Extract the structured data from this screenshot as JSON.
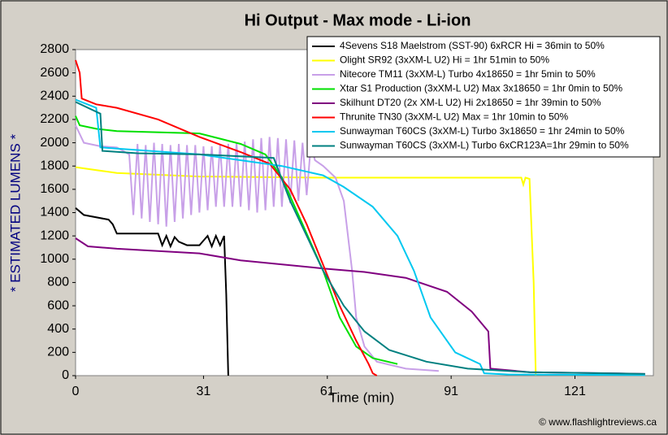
{
  "chart_data": {
    "type": "line",
    "title": "Hi Output - Max mode - Li-ion",
    "y_label": "* ESTIMATED LUMENS *",
    "x_label": "Time (min)",
    "annotation": "© www.flashlightreviews.ca",
    "xlim": [
      0,
      140
    ],
    "ylim": [
      0,
      2800
    ],
    "xticks": [
      0,
      31,
      61,
      91,
      121
    ],
    "yticks": [
      0,
      200,
      400,
      600,
      800,
      1000,
      1200,
      1400,
      1600,
      1800,
      2000,
      2200,
      2400,
      2600,
      2800
    ],
    "series": [
      {
        "name": "4Sevens S18 Maelstrom (SST-90) 6xRCR Hi = 36min to 50%",
        "color": "#000000",
        "x": [
          0,
          2,
          8,
          9,
          10,
          20,
          21,
          22,
          23,
          24,
          25,
          27,
          30,
          32,
          33,
          34,
          35,
          36,
          36.5,
          37
        ],
        "values": [
          1440,
          1380,
          1340,
          1300,
          1220,
          1220,
          1120,
          1200,
          1110,
          1190,
          1150,
          1120,
          1120,
          1200,
          1110,
          1200,
          1120,
          1200,
          700,
          0
        ]
      },
      {
        "name": "Olight SR92 (3xXM-L U2) Hi = 1hr 51min to 50%",
        "color": "#ffff00",
        "x": [
          0,
          10,
          30,
          60,
          100,
          108,
          108.5,
          109,
          110,
          111,
          111.5
        ],
        "values": [
          1790,
          1740,
          1710,
          1700,
          1700,
          1700,
          1640,
          1700,
          1690,
          800,
          0
        ]
      },
      {
        "name": "Nitecore TM11 (3xXM-L) Turbo 4x18650 = 1hr 5min to 50%",
        "color": "#c8a0e8",
        "x": [
          0,
          2,
          6,
          10,
          13,
          14,
          15,
          16,
          17,
          18,
          19,
          20,
          21,
          22,
          23,
          24,
          25,
          26,
          27,
          28,
          29,
          30,
          31,
          32,
          33,
          34,
          35,
          36,
          37,
          38,
          39,
          40,
          41,
          42,
          43,
          44,
          45,
          46,
          47,
          48,
          49,
          50,
          51,
          52,
          53,
          54,
          55,
          56,
          57,
          58,
          60,
          63,
          65,
          67,
          68,
          70,
          73,
          80,
          88
        ],
        "values": [
          2150,
          2000,
          1970,
          1960,
          1900,
          1380,
          1990,
          1350,
          1980,
          1320,
          2000,
          1300,
          1990,
          1280,
          1980,
          1320,
          1990,
          1350,
          1980,
          1380,
          1980,
          1400,
          1970,
          1420,
          1970,
          1450,
          1980,
          1450,
          1990,
          1450,
          2000,
          1450,
          2010,
          1420,
          2030,
          1400,
          2040,
          1420,
          2050,
          1450,
          2040,
          1450,
          2030,
          1480,
          2020,
          1500,
          2000,
          1550,
          1980,
          1850,
          1800,
          1700,
          1500,
          900,
          500,
          250,
          120,
          60,
          40
        ]
      },
      {
        "name": "Xtar S1 Production (3xXM-L U2) Max 3x18650 = 1hr 0min to 50%",
        "color": "#00e000",
        "x": [
          0,
          1,
          5,
          10,
          30,
          40,
          46,
          50,
          55,
          60,
          64,
          68,
          72,
          78
        ],
        "values": [
          2230,
          2150,
          2120,
          2100,
          2080,
          1990,
          1900,
          1700,
          1300,
          900,
          500,
          250,
          150,
          100
        ]
      },
      {
        "name": "Skilhunt DT20 (2x XM-L U2) Hi 2x18650 = 1hr 39min to 50%",
        "color": "#800080",
        "x": [
          0,
          3,
          10,
          30,
          40,
          60,
          70,
          80,
          90,
          96,
          100,
          100.5,
          110,
          130,
          138
        ],
        "values": [
          1180,
          1110,
          1090,
          1050,
          990,
          920,
          890,
          840,
          720,
          550,
          380,
          60,
          30,
          20,
          15
        ]
      },
      {
        "name": "Thrunite TN30 (3xXM-L U2) Max = 1hr 10min to 50%",
        "color": "#ff0000",
        "x": [
          0,
          1,
          1.5,
          5,
          10,
          20,
          30,
          40,
          47,
          52,
          56,
          60,
          64,
          68,
          71,
          72,
          73
        ],
        "values": [
          2710,
          2600,
          2380,
          2330,
          2300,
          2200,
          2050,
          1920,
          1820,
          1600,
          1300,
          950,
          600,
          300,
          100,
          20,
          0
        ]
      },
      {
        "name": "Sunwayman T60CS (3xXM-L) Turbo 3x18650 = 1hr 24min to 50%",
        "color": "#00c8f0",
        "x": [
          0,
          5,
          6,
          10,
          30,
          50,
          60,
          65,
          72,
          78,
          82,
          86,
          92,
          98,
          99,
          105,
          138
        ],
        "values": [
          2370,
          2300,
          1960,
          1950,
          1900,
          1800,
          1720,
          1620,
          1450,
          1200,
          900,
          500,
          200,
          100,
          20,
          10,
          5
        ]
      },
      {
        "name": "Sunwayman T60CS (3xXM-L) Turbo 6xCR123A=1hr 29min to 50%",
        "color": "#008080",
        "x": [
          0,
          6,
          6.5,
          15,
          30,
          48,
          52,
          56,
          60,
          65,
          70,
          76,
          85,
          95,
          110,
          138
        ],
        "values": [
          2350,
          2250,
          1930,
          1910,
          1900,
          1870,
          1500,
          1200,
          900,
          600,
          380,
          220,
          120,
          60,
          30,
          15
        ]
      }
    ]
  }
}
